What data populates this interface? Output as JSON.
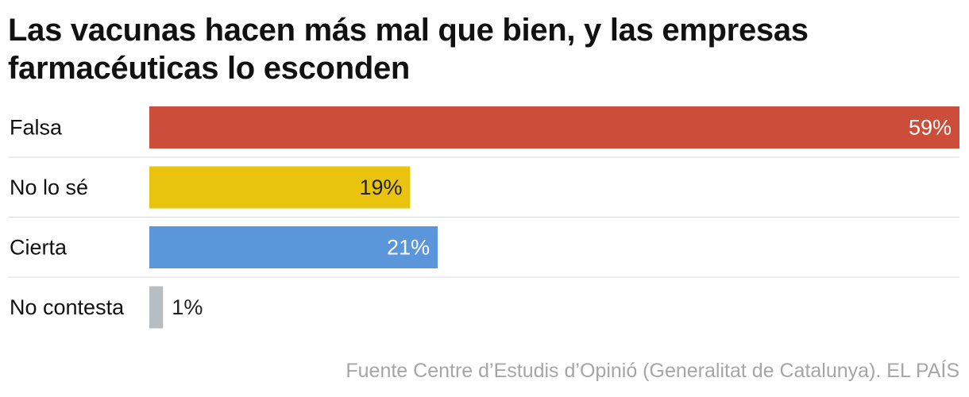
{
  "chart_data": {
    "type": "bar",
    "orientation": "horizontal",
    "title": "Las vacunas hacen más mal que bien, y las empresas farmacéuticas lo esconden",
    "categories": [
      "Falsa",
      "No lo sé",
      "Cierta",
      "No contesta"
    ],
    "values": [
      59,
      19,
      21,
      1
    ],
    "value_labels": [
      "59%",
      "19%",
      "21%",
      "1%"
    ],
    "colors": [
      "#cc4d39",
      "#e8c40f",
      "#5b95da",
      "#b8bdc2"
    ],
    "value_label_colors": [
      "#ffffff",
      "#222222",
      "#ffffff",
      "#222222"
    ],
    "xlim": [
      0,
      59
    ],
    "grid": false,
    "legend": "none"
  },
  "source": "Fuente Centre d’Estudis d’Opinió (Generalitat de Catalunya). EL PAÍS"
}
